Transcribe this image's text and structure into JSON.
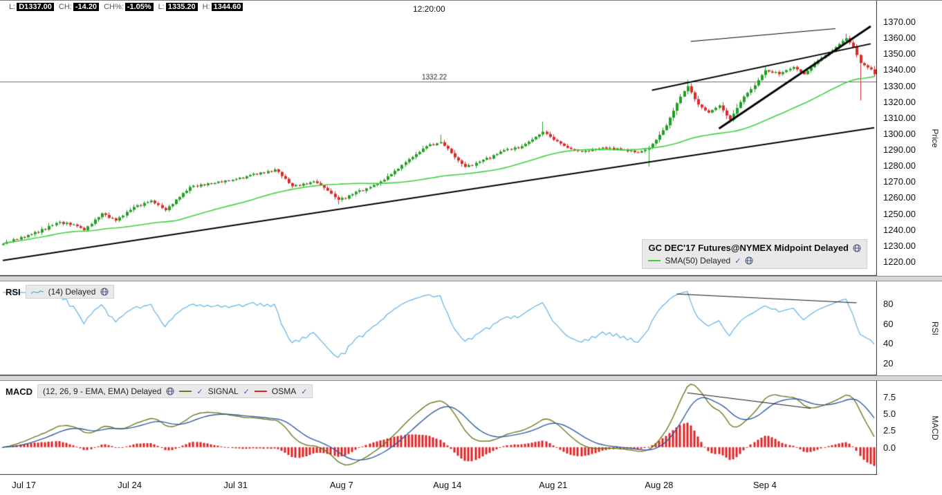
{
  "header": {
    "fields": [
      {
        "label": "L:",
        "value": "D1337.00"
      },
      {
        "label": "CH:",
        "value": "-14.20"
      },
      {
        "label": "CH%:",
        "value": "-1.05%"
      },
      {
        "label": "L:",
        "value": "1335.20"
      },
      {
        "label": "H:",
        "value": "1344.60"
      }
    ],
    "timestamp": "12:20:00"
  },
  "panels": {
    "price": {
      "legend_title": "GC DEC'17 Futures@NYMEX Midpoint Delayed",
      "sma_label": "SMA(50) Delayed"
    },
    "rsi": {
      "title": "RSI",
      "legend": "(14) Delayed"
    },
    "macd": {
      "title": "MACD",
      "legend": "(12, 26, 9 - EMA, EMA) Delayed",
      "signal": "SIGNAL",
      "osma": "OSMA"
    }
  },
  "chart_data": {
    "type": "candlestick",
    "title": "GC DEC'17 Futures@NYMEX Midpoint Delayed",
    "bars": 248,
    "x_tick_labels": [
      "Jul 17",
      "Jul 24",
      "Jul 31",
      "Aug 7",
      "Aug 14",
      "Aug 21",
      "Aug 28",
      "Sep 4"
    ],
    "x_tick_bars": [
      6,
      36,
      66,
      96,
      126,
      156,
      186,
      216
    ],
    "closes": [
      1231.0,
      1232.2,
      1232.1,
      1233.8,
      1233.6,
      1235.2,
      1235.0,
      1236.5,
      1237.0,
      1238.3,
      1238.0,
      1240.2,
      1239.8,
      1242.1,
      1242.6,
      1244.0,
      1244.6,
      1243.3,
      1244.1,
      1242.8,
      1243.0,
      1242.0,
      1240.9,
      1239.5,
      1241.9,
      1243.4,
      1246.1,
      1247.6,
      1250.0,
      1249.0,
      1247.2,
      1246.9,
      1245.5,
      1247.5,
      1248.6,
      1250.9,
      1252.2,
      1254.0,
      1255.1,
      1254.7,
      1256.5,
      1257.0,
      1258.0,
      1256.3,
      1255.2,
      1253.4,
      1252.0,
      1254.4,
      1255.8,
      1258.6,
      1260.2,
      1262.7,
      1264.1,
      1266.5,
      1267.3,
      1266.8,
      1268.1,
      1267.6,
      1268.8,
      1268.4,
      1269.0,
      1269.9,
      1269.4,
      1270.6,
      1270.2,
      1271.0,
      1271.5,
      1272.3,
      1271.9,
      1273.2,
      1274.0,
      1274.8,
      1274.3,
      1275.6,
      1275.1,
      1276.4,
      1276.0,
      1277.5,
      1275.9,
      1273.3,
      1271.6,
      1268.9,
      1267.0,
      1267.8,
      1267.3,
      1268.6,
      1268.2,
      1269.4,
      1270.0,
      1268.9,
      1267.5,
      1266.0,
      1264.2,
      1262.3,
      1260.1,
      1258.5,
      1259.6,
      1259.2,
      1261.3,
      1262.0,
      1263.5,
      1264.4,
      1264.0,
      1265.6,
      1266.5,
      1267.7,
      1268.4,
      1269.9,
      1271.0,
      1273.2,
      1274.5,
      1276.6,
      1277.9,
      1280.3,
      1282.0,
      1283.9,
      1285.2,
      1287.0,
      1288.4,
      1290.5,
      1292.0,
      1293.1,
      1292.6,
      1293.8,
      1294.5,
      1292.2,
      1290.4,
      1287.6,
      1285.0,
      1283.0,
      1280.9,
      1279.0,
      1280.2,
      1279.8,
      1281.6,
      1282.3,
      1283.5,
      1284.7,
      1284.2,
      1286.4,
      1287.1,
      1288.6,
      1289.5,
      1290.3,
      1289.8,
      1291.2,
      1290.7,
      1292.0,
      1293.4,
      1294.8,
      1296.2,
      1297.9,
      1299.3,
      1301.0,
      1299.6,
      1297.8,
      1296.0,
      1295.0,
      1293.6,
      1292.2,
      1291.0,
      1290.2,
      1289.6,
      1289.0,
      1288.5,
      1289.3,
      1288.9,
      1290.0,
      1289.6,
      1290.5,
      1291.2,
      1290.4,
      1291.0,
      1290.0,
      1290.6,
      1289.5,
      1289.9,
      1288.8,
      1289.3,
      1288.2,
      1288.0,
      1288.9,
      1289.8,
      1291.0,
      1293.6,
      1296.0,
      1299.1,
      1302.0,
      1305.0,
      1309.8,
      1314.2,
      1318.9,
      1323.0,
      1326.4,
      1329.5,
      1325.6,
      1321.4,
      1318.0,
      1316.2,
      1314.4,
      1313.0,
      1314.6,
      1316.0,
      1317.5,
      1314.4,
      1311.2,
      1308.5,
      1312.3,
      1315.9,
      1319.6,
      1323.0,
      1325.4,
      1327.7,
      1330.0,
      1333.3,
      1336.5,
      1339.5,
      1338.7,
      1337.9,
      1338.4,
      1337.0,
      1338.3,
      1339.5,
      1340.4,
      1341.5,
      1340.0,
      1338.4,
      1337.0,
      1339.2,
      1341.3,
      1343.5,
      1345.5,
      1347.2,
      1348.8,
      1350.5,
      1352.0,
      1354.0,
      1355.9,
      1357.8,
      1359.5,
      1356.8,
      1354.0,
      1349.0,
      1344.0,
      1342.6,
      1341.2,
      1340.0,
      1337.0
    ],
    "wick_overrides": [
      {
        "i": 95,
        "low": 1255.6
      },
      {
        "i": 124,
        "high": 1299.2
      },
      {
        "i": 153,
        "high": 1307.4
      },
      {
        "i": 183,
        "low": 1279.2
      },
      {
        "i": 194,
        "high": 1333.6
      },
      {
        "i": 239,
        "high": 1362.4
      },
      {
        "i": 243,
        "low": 1320.6
      }
    ],
    "sma_period": 50,
    "horizontal_level": {
      "value": 1332.22,
      "label": "1332.22"
    },
    "price_axis": {
      "label": "Price",
      "min": 1220,
      "max": 1370,
      "ticks": [
        1370,
        1360,
        1350,
        1340,
        1330,
        1320,
        1310,
        1300,
        1290,
        1280,
        1270,
        1260,
        1250,
        1240,
        1230,
        1220
      ]
    },
    "trendlines_price": [
      [
        [
          0,
          1220.5
        ],
        [
          247,
          1303.5
        ]
      ],
      [
        [
          203,
          1303.0
        ],
        [
          246,
          1367.0
        ]
      ],
      [
        [
          184,
          1327.0
        ],
        [
          246,
          1356.0
        ]
      ],
      [
        [
          195,
          1357.5
        ],
        [
          236,
          1365.5
        ]
      ]
    ],
    "rsi": {
      "label": "RSI",
      "period": 14,
      "range": [
        10,
        100
      ],
      "ticks": [
        80,
        60,
        40,
        20
      ],
      "trendline": [
        [
          191,
          90
        ],
        [
          242,
          81
        ]
      ]
    },
    "macd": {
      "label": "MACD",
      "fast": 12,
      "slow": 26,
      "signal": 9,
      "range": [
        -3.5,
        9.2
      ],
      "ticks": [
        7.5,
        5.0,
        2.5,
        0.0
      ],
      "trendline": [
        [
          194,
          8.05
        ],
        [
          229,
          5.75
        ]
      ]
    },
    "colors": {
      "up": "#21a121",
      "down": "#dc2b2b",
      "sma": "#3fd03f",
      "rsi": "#5fb0e5",
      "macd": "#6b7a1f",
      "signal": "#2c5aa5",
      "osma": "#e02222",
      "trendline": "#000000",
      "level": "#6a6a6a"
    }
  }
}
